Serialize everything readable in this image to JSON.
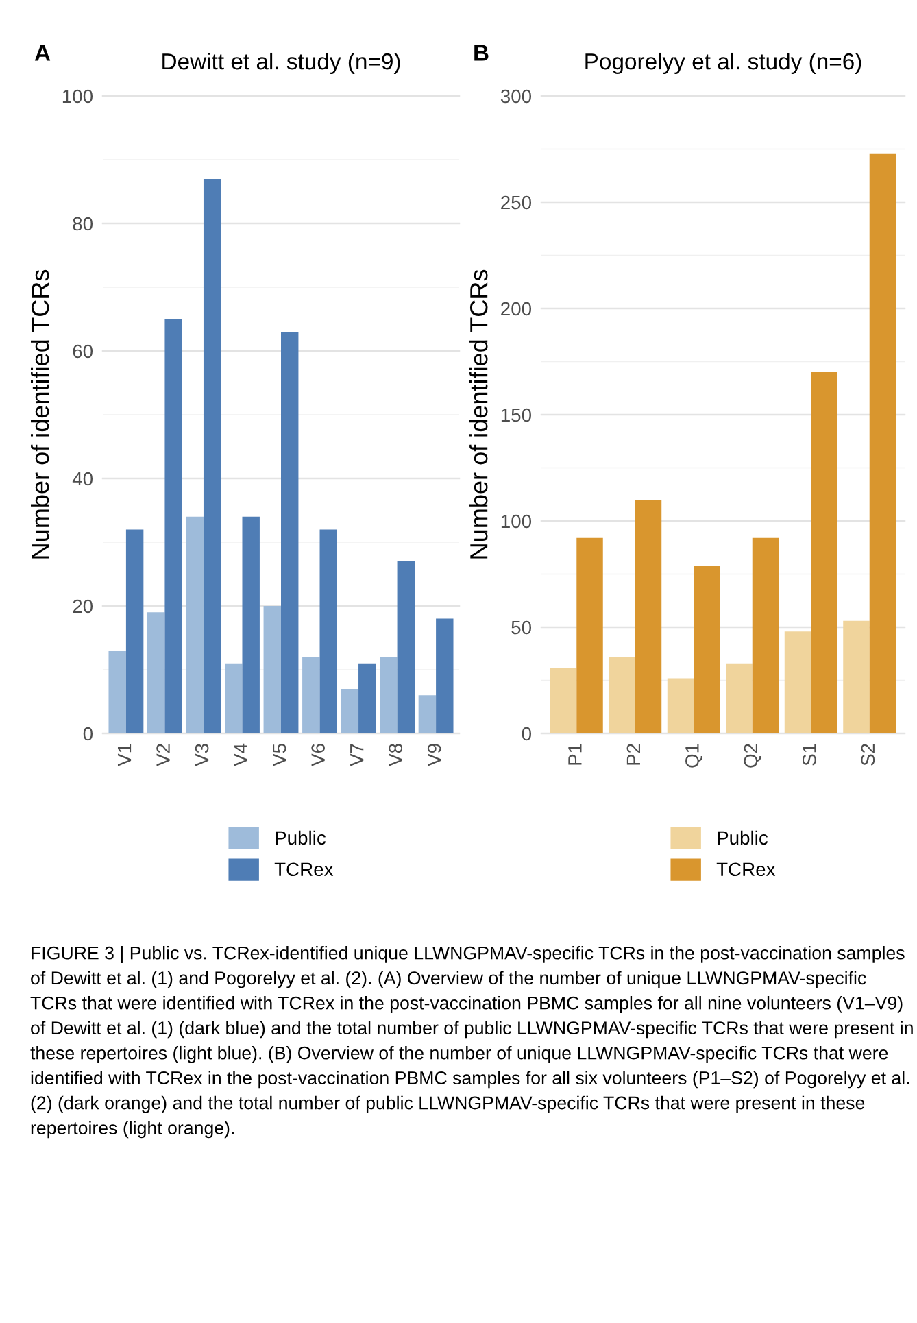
{
  "chart_data": [
    {
      "type": "bar",
      "title": "Dewitt et al. study (n=9)",
      "ylabel": "Number of identified TCRs",
      "annotations": [
        "A",
        "FIGURE 3 | Public vs. TCRex-identified unique LLWNGPMAV-specific TCRs in the post-vaccination samples of Dewitt et al. (1) and Pogorelyy et al. (2). (A) Overview of the number of unique LLWNGPMAV-specific TCRs that were identified with TCRex in the post-vaccination PBMC samples for all nine volunteers (V1–V9) of Dewitt et al. (1) (dark blue) and the total number of public LLWNGPMAV-specific TCRs that were present in these repertoires (light blue). (B) Overview of the number of unique LLWNGPMAV-specific TCRs that were identified with TCRex in the post-vaccination PBMC samples for all six volunteers (P1–S2) of Pogorelyy et al. (2) (dark orange) and the total number of public LLWNGPMAV-specific TCRs that were present in these repertoires (light orange)."
      ],
      "categories": [
        "V1",
        "V2",
        "V3",
        "V4",
        "V5",
        "V6",
        "V7",
        "V8",
        "V9"
      ],
      "series": [
        {
          "name": "Public",
          "color": "#9ebbda",
          "values": [
            13,
            19,
            34,
            11,
            20,
            12,
            7,
            12,
            6
          ]
        },
        {
          "name": "TCRex",
          "color": "#4f7db5",
          "values": [
            32,
            65,
            87,
            34,
            63,
            32,
            11,
            27,
            18
          ]
        }
      ],
      "ylim": [
        0,
        100
      ],
      "yticks": [
        0,
        20,
        40,
        60,
        80,
        100
      ],
      "grid": "y",
      "legend": "bottom"
    },
    {
      "type": "bar",
      "title": "Pogorelyy et al. study (n=6)",
      "ylabel": "Number of identified TCRs",
      "annotations": [
        "B"
      ],
      "categories": [
        "P1",
        "P2",
        "Q1",
        "Q2",
        "S1",
        "S2"
      ],
      "series": [
        {
          "name": "Public",
          "color": "#f0d49c",
          "values": [
            31,
            36,
            26,
            33,
            48,
            53
          ]
        },
        {
          "name": "TCRex",
          "color": "#d9962e",
          "values": [
            92,
            110,
            79,
            92,
            170,
            273
          ]
        }
      ],
      "ylim": [
        0,
        300
      ],
      "yticks": [
        0,
        50,
        100,
        150,
        200,
        250,
        300
      ],
      "grid": "y",
      "legend": "bottom"
    }
  ]
}
